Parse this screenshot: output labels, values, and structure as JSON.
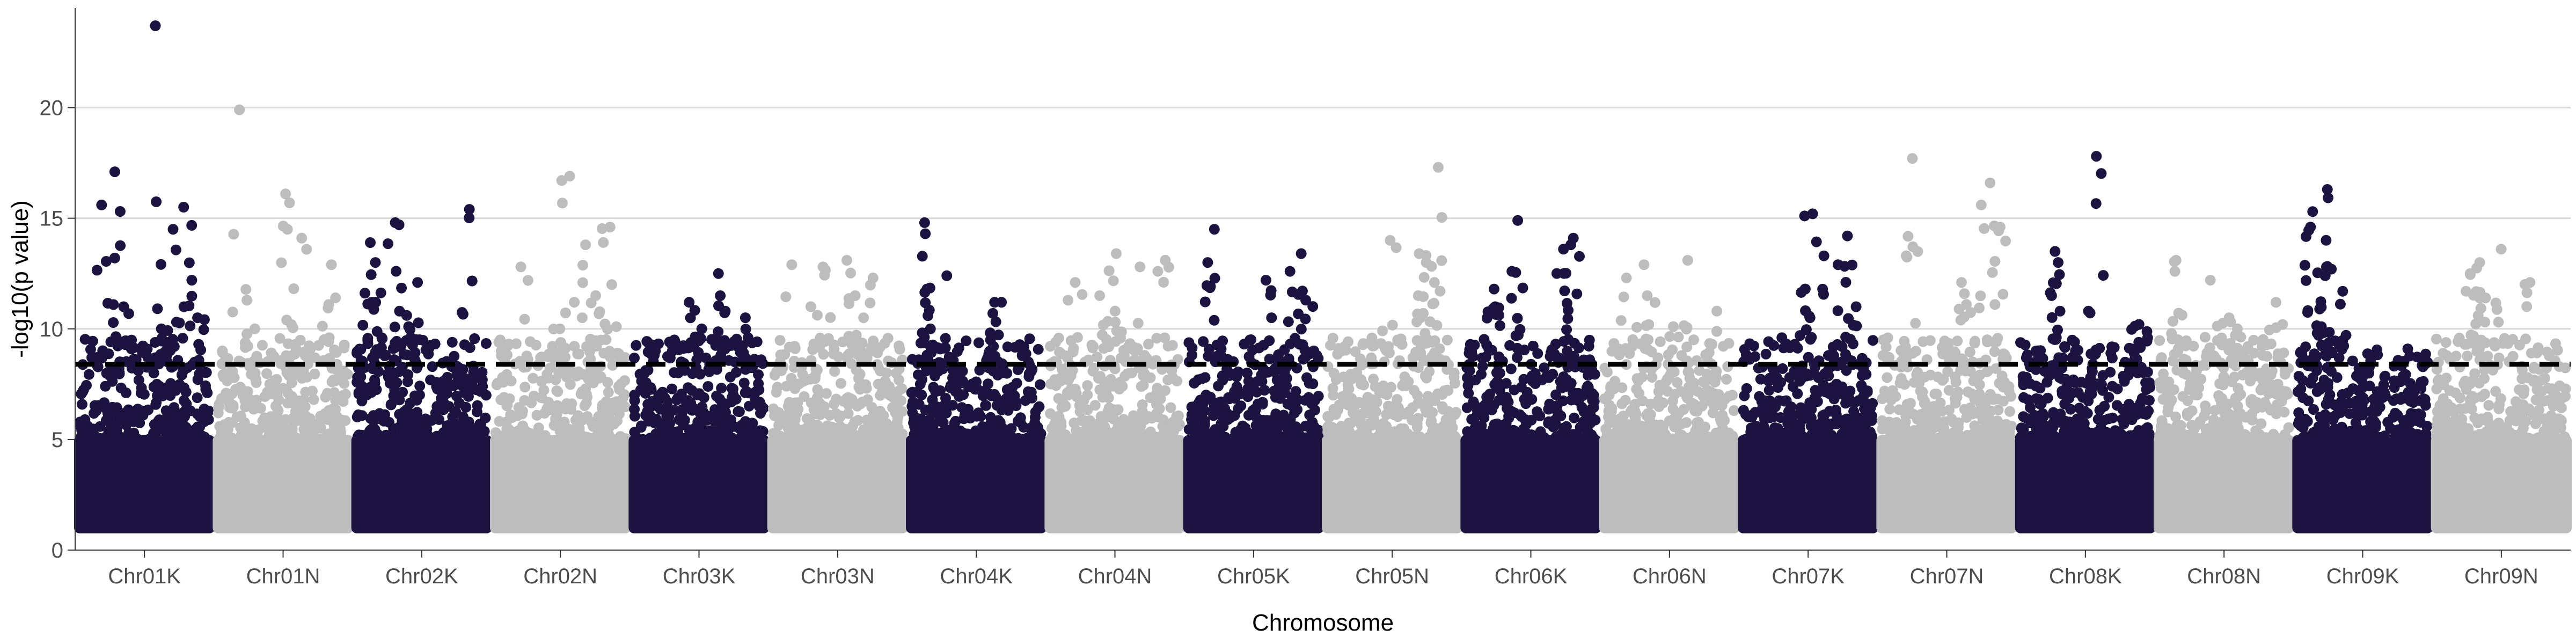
{
  "chart_data": {
    "type": "scatter",
    "subtype": "manhattan",
    "title": "",
    "xlabel": "Chromosome",
    "ylabel": "-log10(p value)",
    "ylim": [
      0,
      24.5
    ],
    "yticks": [
      0,
      5,
      10,
      15,
      20
    ],
    "grid": "horizontal",
    "legend": "none",
    "threshold": {
      "value": 8.4,
      "style": "dashed",
      "color": "#000000"
    },
    "colors": {
      "odd": "#1d1340",
      "even": "#bdbdbd"
    },
    "categories": [
      "Chr01K",
      "Chr01N",
      "Chr02K",
      "Chr02N",
      "Chr03K",
      "Chr03N",
      "Chr04K",
      "Chr04N",
      "Chr05K",
      "Chr05N",
      "Chr06K",
      "Chr06N",
      "Chr07K",
      "Chr07N",
      "Chr08K",
      "Chr08N",
      "Chr09K",
      "Chr09N"
    ],
    "series": [
      {
        "name": "Chr01K",
        "color": "#1d1340",
        "peaks": [
          23.7,
          17.1,
          15.6,
          15.5,
          14.5,
          13.2,
          12.2,
          11.0,
          10.5,
          10.0
        ]
      },
      {
        "name": "Chr01N",
        "color": "#bdbdbd",
        "peaks": [
          19.9,
          16.1,
          14.5,
          14.1,
          12.9,
          11.1,
          10.4,
          10.0,
          9.6
        ]
      },
      {
        "name": "Chr02K",
        "color": "#1d1340",
        "peaks": [
          15.4,
          14.8,
          13.9,
          13.0,
          12.1,
          11.2,
          10.8,
          10.1
        ]
      },
      {
        "name": "Chr02N",
        "color": "#bdbdbd",
        "peaks": [
          16.9,
          14.6,
          13.8,
          12.8,
          12.0,
          11.5,
          10.5,
          10.0
        ]
      },
      {
        "name": "Chr03K",
        "color": "#1d1340",
        "peaks": [
          12.5,
          11.2,
          10.8,
          10.5,
          10.0,
          9.5
        ]
      },
      {
        "name": "Chr03N",
        "color": "#bdbdbd",
        "peaks": [
          13.1,
          12.9,
          12.8,
          12.3,
          11.5,
          11.0,
          10.5
        ]
      },
      {
        "name": "Chr04K",
        "color": "#1d1340",
        "peaks": [
          14.8,
          14.3,
          12.4,
          11.8,
          11.2,
          10.7,
          10.0
        ]
      },
      {
        "name": "Chr04N",
        "color": "#bdbdbd",
        "peaks": [
          13.4,
          13.1,
          12.8,
          12.1,
          11.5,
          10.8
        ]
      },
      {
        "name": "Chr05K",
        "color": "#1d1340",
        "peaks": [
          14.5,
          13.4,
          13.0,
          12.6,
          12.2,
          11.3,
          10.5
        ]
      },
      {
        "name": "Chr05N",
        "color": "#bdbdbd",
        "peaks": [
          17.3,
          14.0,
          13.4,
          13.0,
          12.1,
          11.5,
          10.7
        ]
      },
      {
        "name": "Chr06K",
        "color": "#1d1340",
        "peaks": [
          14.9,
          14.1,
          13.8,
          13.6,
          12.6,
          11.8,
          11.0
        ]
      },
      {
        "name": "Chr06N",
        "color": "#bdbdbd",
        "peaks": [
          13.1,
          12.9,
          12.3,
          11.5,
          10.8,
          10.1
        ]
      },
      {
        "name": "Chr07K",
        "color": "#1d1340",
        "peaks": [
          15.2,
          14.2,
          13.3,
          12.9,
          11.8,
          11.0,
          10.5
        ]
      },
      {
        "name": "Chr07N",
        "color": "#bdbdbd",
        "peaks": [
          17.7,
          16.6,
          15.6,
          14.6,
          13.3,
          12.1,
          11.1
        ]
      },
      {
        "name": "Chr08K",
        "color": "#1d1340",
        "peaks": [
          17.8,
          13.5,
          13.0,
          11.5,
          10.8,
          10.2
        ]
      },
      {
        "name": "Chr08N",
        "color": "#bdbdbd",
        "peaks": [
          13.1,
          12.6,
          12.2,
          11.2,
          10.5,
          10.0
        ]
      },
      {
        "name": "Chr09K",
        "color": "#1d1340",
        "peaks": [
          16.3,
          15.3,
          14.6,
          12.8,
          12.4,
          11.7,
          10.9
        ]
      },
      {
        "name": "Chr09N",
        "color": "#bdbdbd",
        "peaks": [
          13.6,
          13.0,
          12.5,
          12.1,
          11.4,
          10.6
        ]
      }
    ]
  }
}
